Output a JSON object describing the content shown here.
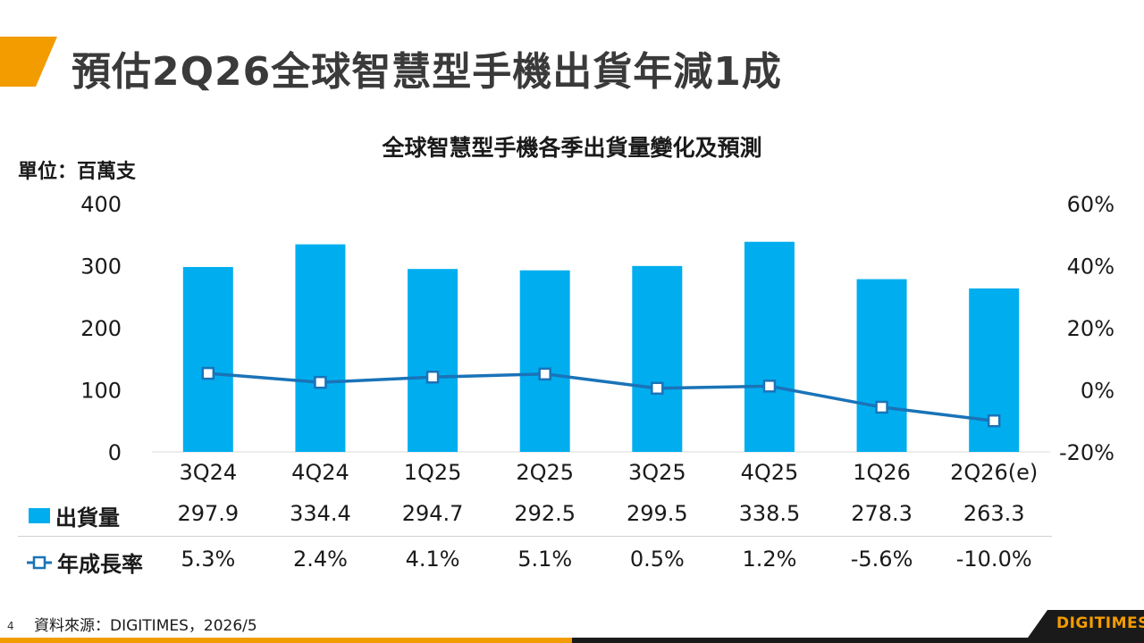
{
  "header": {
    "title": "預估2Q26全球智慧型手機出貨年減1成",
    "accent_color": "#f39c00"
  },
  "chart_data": {
    "type": "bar+line",
    "title": "全球智慧型手機各季出貨量變化及預測",
    "unit_label": "單位：百萬支",
    "categories": [
      "3Q24",
      "4Q24",
      "1Q25",
      "2Q25",
      "3Q25",
      "4Q25",
      "1Q26",
      "2Q26(e)"
    ],
    "series": [
      {
        "name": "出貨量",
        "type": "bar",
        "axis": "left",
        "color": "#00aeef",
        "values": [
          297.9,
          334.4,
          294.7,
          292.5,
          299.5,
          338.5,
          278.3,
          263.3
        ],
        "labels": [
          "297.9",
          "334.4",
          "294.7",
          "292.5",
          "299.5",
          "338.5",
          "278.3",
          "263.3"
        ]
      },
      {
        "name": "年成長率",
        "type": "line",
        "axis": "right",
        "color": "#1a73b8",
        "marker": "hollow-square",
        "values": [
          5.3,
          2.4,
          4.1,
          5.1,
          0.5,
          1.2,
          -5.6,
          -10.0
        ],
        "labels": [
          "5.3%",
          "2.4%",
          "4.1%",
          "5.1%",
          "0.5%",
          "1.2%",
          "-5.6%",
          "-10.0%"
        ]
      }
    ],
    "y_left": {
      "min": 0,
      "max": 400,
      "ticks": [
        "0",
        "100",
        "200",
        "300",
        "400"
      ]
    },
    "y_right": {
      "min": -20,
      "max": 60,
      "ticks": [
        "-20%",
        "0%",
        "20%",
        "40%",
        "60%"
      ]
    },
    "grid": false,
    "legend": "table-below"
  },
  "footer": {
    "page_number": "4",
    "source": "資料來源：DIGITIMES，2026/5",
    "logo_text": "DIGITIMES"
  }
}
